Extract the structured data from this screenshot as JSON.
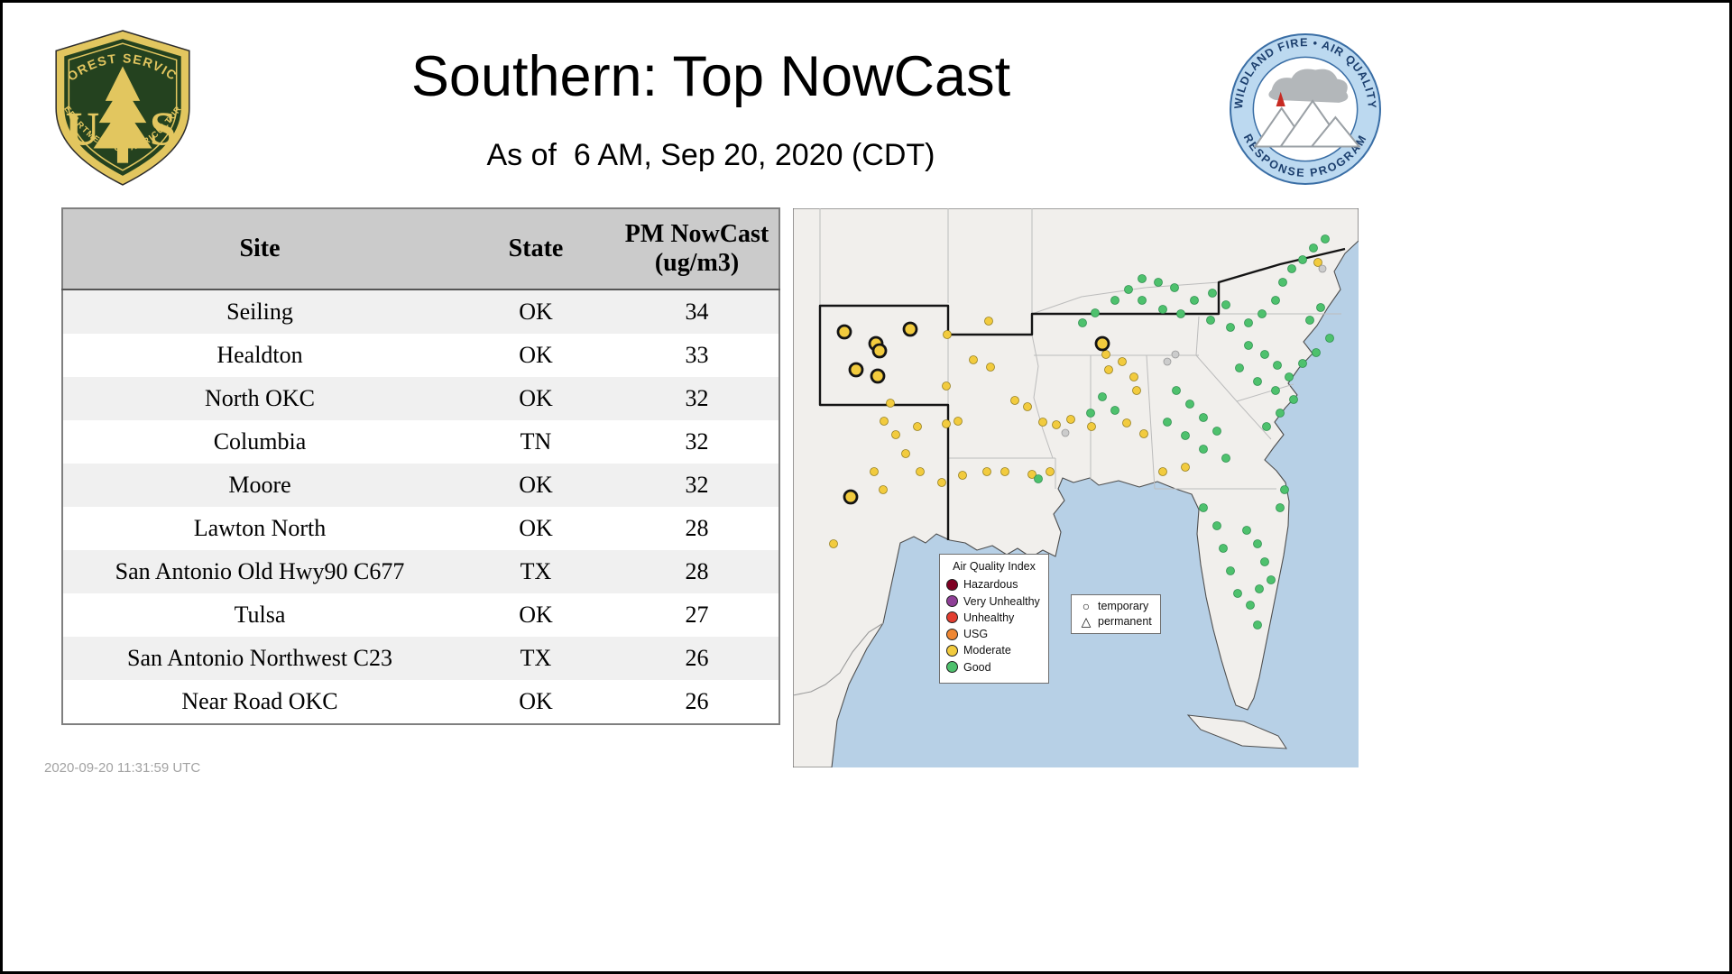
{
  "page": {
    "title": "Southern: Top NowCast",
    "subtitle": "As of  6 AM, Sep 20, 2020 (CDT)",
    "footer_timestamp": "2020-09-20 11:31:59 UTC"
  },
  "logos": {
    "forest_service": {
      "arc_top": "FOREST SERVICE",
      "arc_bottom": "DEPARTMENT OF AGRICULTURE",
      "monogram_left": "U",
      "monogram_right": "S",
      "shield_green": "#24421f",
      "shield_gold": "#e2c65f"
    },
    "wfaqrp": {
      "arc_top": "WILDLAND FIRE • AIR QUALITY",
      "arc_bottom": "RESPONSE PROGRAM",
      "ring_blue": "#bcd9f0",
      "text_blue": "#1c3f6e"
    }
  },
  "table": {
    "headers": [
      "Site",
      "State",
      "PM NowCast (ug/m3)"
    ],
    "rows": [
      [
        "Seiling",
        "OK",
        "34"
      ],
      [
        "Healdton",
        "OK",
        "33"
      ],
      [
        "North OKC",
        "OK",
        "32"
      ],
      [
        "Columbia",
        "TN",
        "32"
      ],
      [
        "Moore",
        "OK",
        "32"
      ],
      [
        "Lawton North",
        "OK",
        "28"
      ],
      [
        "San Antonio Old Hwy90 C677",
        "TX",
        "28"
      ],
      [
        "Tulsa",
        "OK",
        "27"
      ],
      [
        "San Antonio Northwest C23",
        "TX",
        "26"
      ],
      [
        "Near Road OKC",
        "OK",
        "26"
      ]
    ]
  },
  "chart_data": {
    "type": "table",
    "title": "Southern: Top NowCast",
    "as_of": "6 AM, Sep 20, 2020 (CDT)",
    "columns": [
      "Site",
      "State",
      "PM NowCast (ug/m3)"
    ],
    "rows": [
      [
        "Seiling",
        "OK",
        34
      ],
      [
        "Healdton",
        "OK",
        33
      ],
      [
        "North OKC",
        "OK",
        32
      ],
      [
        "Columbia",
        "TN",
        32
      ],
      [
        "Moore",
        "OK",
        32
      ],
      [
        "Lawton North",
        "OK",
        28
      ],
      [
        "San Antonio Old Hwy90 C677",
        "TX",
        28
      ],
      [
        "Tulsa",
        "OK",
        27
      ],
      [
        "San Antonio Northwest C23",
        "TX",
        26
      ],
      [
        "Near Road OKC",
        "OK",
        26
      ]
    ]
  },
  "map": {
    "colors": {
      "water": "#b7d0e6",
      "land": "#f1efec",
      "coast": "#4f4f4f",
      "state_line": "#bcbcbc",
      "region_outline": "#141414"
    },
    "legend": {
      "title": "Air Quality Index",
      "entries": [
        {
          "label": "Hazardous",
          "color": "#7e0023"
        },
        {
          "label": "Very Unhealthy",
          "color": "#8f3f97"
        },
        {
          "label": "Unhealthy",
          "color": "#e23d30"
        },
        {
          "label": "USG",
          "color": "#ef8733"
        },
        {
          "label": "Moderate",
          "color": "#f2cb3e"
        },
        {
          "label": "Good",
          "color": "#4ec16d"
        }
      ]
    },
    "symbol_legend": {
      "temporary_label": "temporary",
      "permanent_label": "permanent",
      "temporary_glyph": "○",
      "permanent_glyph": "△"
    },
    "dot_styles": {
      "moderate": {
        "r": 4.5,
        "fill": "#f2cb3e",
        "stroke": "#97801f",
        "sw": 0.8
      },
      "good": {
        "r": 4.5,
        "fill": "#4ec16d",
        "stroke": "#2f9150",
        "sw": 0.8
      },
      "inactive": {
        "r": 4.0,
        "fill": "#cccccc",
        "stroke": "#999999",
        "sw": 0.8
      },
      "temporary_moderate": {
        "r": 7.0,
        "fill": "#f2cb3e",
        "stroke": "#141414",
        "sw": 2.8
      }
    },
    "dots": {
      "moderate": [
        [
          171,
          140
        ],
        [
          217,
          125
        ],
        [
          200,
          168
        ],
        [
          219,
          176
        ],
        [
          108,
          216
        ],
        [
          101,
          236
        ],
        [
          114,
          251
        ],
        [
          138,
          242
        ],
        [
          170,
          239
        ],
        [
          183,
          236
        ],
        [
          246,
          213
        ],
        [
          260,
          220
        ],
        [
          277,
          237
        ],
        [
          292,
          240
        ],
        [
          308,
          234
        ],
        [
          331,
          242
        ],
        [
          350,
          179
        ],
        [
          365,
          170
        ],
        [
          347,
          162
        ],
        [
          378,
          187
        ],
        [
          370,
          238
        ],
        [
          389,
          250
        ],
        [
          285,
          292
        ],
        [
          265,
          295
        ],
        [
          235,
          292
        ],
        [
          215,
          292
        ],
        [
          188,
          296
        ],
        [
          165,
          304
        ],
        [
          141,
          292
        ],
        [
          100,
          312
        ],
        [
          90,
          292
        ],
        [
          125,
          272
        ],
        [
          45,
          372
        ],
        [
          435,
          287
        ],
        [
          410,
          292
        ],
        [
          381,
          202
        ],
        [
          582,
          60
        ],
        [
          170,
          197
        ]
      ],
      "good": [
        [
          321,
          127
        ],
        [
          335,
          116
        ],
        [
          357,
          102
        ],
        [
          372,
          90
        ],
        [
          387,
          78
        ],
        [
          405,
          82
        ],
        [
          423,
          88
        ],
        [
          387,
          102
        ],
        [
          410,
          112
        ],
        [
          430,
          117
        ],
        [
          445,
          102
        ],
        [
          465,
          94
        ],
        [
          480,
          107
        ],
        [
          463,
          124
        ],
        [
          485,
          132
        ],
        [
          505,
          127
        ],
        [
          520,
          117
        ],
        [
          535,
          102
        ],
        [
          543,
          82
        ],
        [
          553,
          67
        ],
        [
          565,
          57
        ],
        [
          577,
          44
        ],
        [
          590,
          34
        ],
        [
          505,
          152
        ],
        [
          523,
          162
        ],
        [
          537,
          174
        ],
        [
          495,
          177
        ],
        [
          515,
          192
        ],
        [
          535,
          202
        ],
        [
          550,
          187
        ],
        [
          565,
          172
        ],
        [
          580,
          160
        ],
        [
          595,
          144
        ],
        [
          573,
          124
        ],
        [
          585,
          110
        ],
        [
          425,
          202
        ],
        [
          440,
          217
        ],
        [
          455,
          232
        ],
        [
          470,
          247
        ],
        [
          435,
          252
        ],
        [
          415,
          237
        ],
        [
          455,
          267
        ],
        [
          480,
          277
        ],
        [
          343,
          209
        ],
        [
          357,
          224
        ],
        [
          330,
          227
        ],
        [
          272,
          300
        ],
        [
          455,
          332
        ],
        [
          470,
          352
        ],
        [
          477,
          377
        ],
        [
          485,
          402
        ],
        [
          493,
          427
        ],
        [
          507,
          440
        ],
        [
          517,
          422
        ],
        [
          523,
          392
        ],
        [
          515,
          372
        ],
        [
          503,
          357
        ],
        [
          530,
          412
        ],
        [
          515,
          462
        ],
        [
          540,
          332
        ],
        [
          545,
          312
        ],
        [
          525,
          242
        ],
        [
          540,
          227
        ],
        [
          555,
          212
        ]
      ],
      "inactive": [
        [
          415,
          170
        ],
        [
          424,
          162
        ],
        [
          587,
          67
        ],
        [
          302,
          249
        ]
      ],
      "temporary_moderate": [
        [
          57,
          137
        ],
        [
          92,
          150
        ],
        [
          96,
          158
        ],
        [
          130,
          134
        ],
        [
          70,
          179
        ],
        [
          94,
          186
        ],
        [
          343,
          150
        ],
        [
          64,
          320
        ]
      ]
    }
  }
}
